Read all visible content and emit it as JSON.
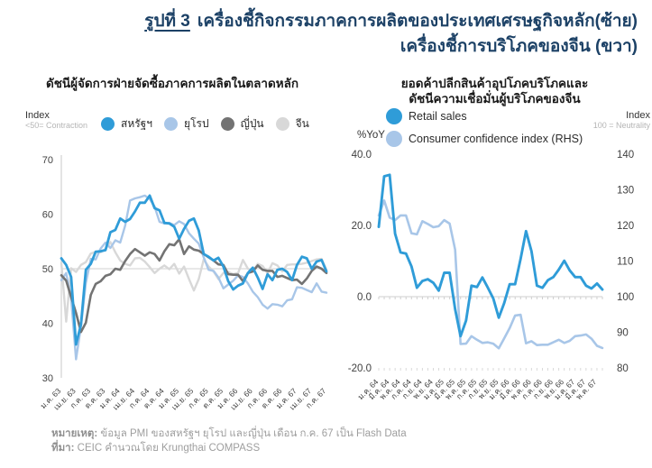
{
  "header": {
    "figure_label": "รูปที่ 3",
    "title_line1": "เครื่องชี้กิจกรรมภาคการผลิตของประเทศเศรษฐกิจหลัก(ซ้าย)",
    "title_line2": "เครื่องชี้การบริโภคของจีน (ขวา)"
  },
  "footer": {
    "note_label": "หมายเหตุ:",
    "note_text": " ข้อมูล PMI ของสหรัฐฯ ยุโรป และญี่ปุ่น เดือน ก.ค. 67 เป็น Flash Data",
    "source_label": "ที่มา:",
    "source_text": " CEIC คำนวณโดย Krungthai COMPASS"
  },
  "colors": {
    "title_navy": "#1c4166",
    "us_blue": "#2f9cd8",
    "euro_light_blue": "#a8c6e8",
    "japan_gray": "#737373",
    "china_light_gray": "#d8d8d8",
    "axis_text": "#3f3f3f",
    "muted_gray": "#b5b5b5",
    "grid_gray": "#d9d9d9"
  },
  "chart_data": [
    {
      "type": "line",
      "title": "ดัชนีผู้จัดการฝ่ายจัดซื้อภาคการผลิตในตลาดหลัก",
      "y_axis_label": "Index",
      "y_axis_sublabel": "<50= Contraction",
      "ylim": [
        30,
        70
      ],
      "yticks": [
        70,
        60,
        50,
        40,
        30
      ],
      "reference_line": 50,
      "grid": false,
      "legend_position": "top",
      "x_tick_every": 3,
      "x_tick_labels": [
        "ม.ค. 63",
        "เม.ย. 63",
        "ก.ค. 63",
        "ต.ค. 63",
        "ม.ค. 64",
        "เม.ย. 64",
        "ก.ค. 64",
        "ต.ค. 64",
        "ม.ค. 65",
        "เม.ย. 65",
        "ก.ค. 65",
        "ต.ค. 65",
        "ม.ค. 66",
        "เม.ย. 66",
        "ก.ค. 66",
        "ต.ค. 66",
        "ม.ค. 67",
        "เม.ย. 67",
        "ก.ค. 67"
      ],
      "series": [
        {
          "name": "สหรัฐฯ",
          "color": "#2f9cd8",
          "values": [
            51.9,
            50.7,
            48.5,
            36.1,
            39.8,
            49.8,
            50.9,
            53.1,
            53.2,
            53.4,
            56.7,
            57.1,
            59.2,
            58.6,
            59.1,
            60.5,
            62.1,
            62.1,
            63.4,
            61.1,
            60.7,
            58.4,
            58.3,
            57.7,
            55.5,
            57.3,
            58.8,
            59.2,
            57.0,
            52.7,
            52.2,
            51.5,
            52.0,
            50.4,
            47.7,
            46.2,
            46.9,
            47.3,
            49.2,
            50.2,
            48.4,
            46.3,
            49.0,
            47.9,
            49.8,
            50.0,
            49.4,
            47.9,
            50.7,
            52.2,
            51.9,
            50.0,
            51.3,
            51.6,
            49.5
          ]
        },
        {
          "name": "ยุโรป",
          "color": "#a8c6e8",
          "values": [
            47.9,
            49.2,
            44.5,
            33.4,
            39.4,
            47.4,
            51.8,
            51.7,
            53.7,
            54.8,
            53.8,
            55.2,
            54.8,
            57.9,
            62.5,
            62.9,
            63.1,
            63.4,
            62.8,
            61.4,
            58.6,
            58.3,
            58.4,
            58.0,
            58.7,
            58.2,
            56.5,
            55.5,
            54.6,
            52.1,
            49.8,
            49.6,
            48.4,
            46.4,
            47.1,
            47.8,
            48.8,
            48.5,
            47.3,
            45.8,
            44.8,
            43.4,
            42.7,
            43.5,
            43.4,
            43.1,
            44.2,
            44.4,
            46.6,
            46.5,
            46.1,
            45.7,
            47.3,
            45.8,
            45.6
          ]
        },
        {
          "name": "ญี่ปุ่น",
          "color": "#737373",
          "values": [
            48.8,
            47.8,
            44.8,
            41.9,
            38.4,
            40.1,
            45.2,
            47.2,
            47.7,
            48.7,
            49.0,
            50.0,
            49.8,
            51.4,
            52.7,
            53.6,
            53.0,
            52.4,
            53.0,
            52.7,
            51.5,
            53.2,
            54.5,
            54.3,
            55.4,
            52.7,
            54.1,
            53.5,
            53.3,
            52.7,
            52.1,
            51.5,
            50.8,
            50.7,
            49.0,
            48.9,
            48.9,
            47.7,
            49.2,
            49.5,
            50.6,
            49.8,
            49.6,
            49.6,
            48.5,
            48.7,
            48.3,
            47.9,
            48.0,
            47.2,
            48.2,
            49.6,
            50.4,
            50.0,
            49.2
          ]
        },
        {
          "name": "จีน",
          "color": "#d8d8d8",
          "values": [
            51.1,
            40.3,
            50.1,
            49.4,
            50.7,
            51.2,
            52.8,
            53.1,
            53.0,
            53.6,
            54.9,
            53.0,
            51.5,
            50.9,
            50.6,
            51.9,
            52.0,
            51.3,
            50.3,
            49.2,
            50.0,
            50.6,
            49.9,
            50.9,
            49.1,
            50.4,
            48.1,
            46.0,
            48.1,
            51.7,
            50.4,
            49.5,
            48.1,
            49.2,
            49.4,
            49.0,
            49.2,
            51.6,
            50.0,
            49.5,
            50.9,
            50.5,
            49.2,
            51.0,
            50.6,
            49.5,
            50.7,
            50.8,
            50.8,
            50.9,
            51.1,
            51.4,
            51.7,
            51.8,
            49.8
          ]
        }
      ]
    },
    {
      "type": "line",
      "title_line1": "ยอดค้าปลีกสินค้าอุปโภคบริโภคและ",
      "title_line2": "ดัชนีความเชื่อมั่นผู้บริโภคของจีน",
      "left_axis_label": "%YoY",
      "right_axis_label": "Index",
      "right_axis_sublabel": "100 = Neutrality",
      "left_ylim": [
        -20,
        40
      ],
      "left_ytick_values": [
        40,
        20,
        0,
        -20
      ],
      "left_ytick_labels": [
        "40.0",
        "20.0",
        "0.0",
        "-20.0"
      ],
      "right_ylim": [
        80,
        140
      ],
      "right_yticks": [
        140,
        130,
        120,
        110,
        100,
        90,
        80
      ],
      "zero_line": 0,
      "x_tick_every": 2,
      "x_tick_labels": [
        "ม.ค. 64",
        "มี.ค. 64",
        "พ.ค. 64",
        "ก.ค. 64",
        "ก.ย. 64",
        "พ.ย. 64",
        "ม.ค. 65",
        "มี.ค. 65",
        "พ.ค. 65",
        "ก.ค. 65",
        "ก.ย. 65",
        "พ.ย. 65",
        "ม.ค. 66",
        "มี.ค. 66",
        "พ.ค. 66",
        "ก.ค. 66",
        "ก.ย. 66",
        "พ.ย. 66",
        "ม.ค. 67",
        "มี.ค. 67",
        "พ.ค. 67"
      ],
      "series": [
        {
          "name": "Retail sales",
          "axis": "left",
          "color": "#2f9cd8",
          "values": [
            19.6,
            33.8,
            34.2,
            17.7,
            12.4,
            12.1,
            8.5,
            2.5,
            4.4,
            4.9,
            3.9,
            1.7,
            6.7,
            6.7,
            -3.5,
            -11.1,
            -6.7,
            3.1,
            2.7,
            5.4,
            2.5,
            -0.5,
            -5.9,
            -1.8,
            3.5,
            3.5,
            10.6,
            18.4,
            12.7,
            3.1,
            2.5,
            4.6,
            5.5,
            7.6,
            10.1,
            7.4,
            5.5,
            5.5,
            3.1,
            2.3,
            3.7,
            2.0
          ]
        },
        {
          "name": "Consumer confidence index (RHS)",
          "axis": "right",
          "color": "#a8c6e8",
          "values": [
            122.8,
            127.0,
            122.2,
            121.5,
            122.8,
            122.8,
            117.8,
            117.5,
            121.2,
            120.4,
            119.5,
            119.8,
            121.5,
            120.5,
            113.2,
            86.7,
            86.8,
            88.9,
            87.9,
            87.0,
            87.2,
            86.8,
            85.5,
            88.3,
            91.2,
            94.7,
            94.9,
            86.9,
            87.5,
            86.4,
            86.5,
            86.5,
            87.2,
            87.9,
            87.0,
            87.6,
            88.9,
            89.1,
            89.4,
            88.2,
            86.2,
            85.6
          ]
        }
      ]
    }
  ]
}
